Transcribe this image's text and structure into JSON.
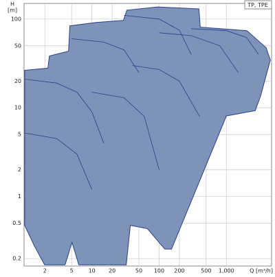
{
  "chart_data": {
    "type": "area",
    "title": "TP, TPE",
    "y_label": "H",
    "y_unit": "[m]",
    "x_label": "Q [m³/h]",
    "log_x": true,
    "log_y": true,
    "grid": true,
    "xlim": [
      0.98,
      4700
    ],
    "ylim": [
      0.165,
      150
    ],
    "xticks": [
      2,
      5,
      10,
      20,
      50,
      100,
      200,
      500,
      {
        "value": 1000,
        "label": "1,000"
      }
    ],
    "yticks": [
      0.2,
      0.5,
      1,
      2,
      5,
      10,
      20,
      50,
      100
    ],
    "series": [
      {
        "fill": "#7d93b7",
        "color": "#2b3e8c",
        "x": [
          1.0,
          2.22,
          2.33,
          4.5,
          4.7,
          11.5,
          29.4,
          33.1,
          95.5,
          391,
          409,
          2020,
          3910,
          4500,
          3240,
          2690,
          1000,
          153,
          121,
          67,
          37.3,
          32.4,
          6.4,
          5.06,
          4.0,
          1.98,
          1.39,
          1.0
        ],
        "values": [
          26.5,
          28,
          38.4,
          43.5,
          83.8,
          91.5,
          96.5,
          126,
          137,
          130,
          81,
          74,
          47.5,
          34.5,
          13.7,
          9.3,
          8.1,
          0.256,
          0.256,
          0.435,
          0.475,
          0.17,
          0.17,
          0.305,
          0.17,
          0.17,
          0.28,
          0.475
        ]
      },
      {
        "color": "#2b3e8c",
        "x": [
          1,
          3,
          6,
          10,
          15
        ],
        "values": [
          21,
          19,
          15,
          9,
          4
        ]
      },
      {
        "color": "#2b3e8c",
        "x": [
          5,
          15,
          30,
          50
        ],
        "values": [
          60,
          55,
          45,
          25
        ]
      },
      {
        "color": "#2b3e8c",
        "x": [
          30,
          100,
          200,
          300
        ],
        "values": [
          110,
          100,
          75,
          40
        ]
      },
      {
        "color": "#2b3e8c",
        "x": [
          1,
          3,
          6,
          10
        ],
        "values": [
          5.2,
          4.5,
          3,
          1.2
        ]
      },
      {
        "color": "#2b3e8c",
        "x": [
          100,
          300,
          800,
          1500
        ],
        "values": [
          70,
          65,
          50,
          25
        ]
      },
      {
        "color": "#2b3e8c",
        "x": [
          300,
          1000,
          2000,
          3000
        ],
        "values": [
          78,
          74,
          62,
          40
        ]
      },
      {
        "color": "#2b3e8c",
        "x": [
          10,
          30,
          60,
          100
        ],
        "values": [
          15,
          13,
          8,
          2
        ]
      },
      {
        "color": "#2b3e8c",
        "x": [
          40,
          100,
          200,
          400
        ],
        "values": [
          30,
          27,
          20,
          8
        ]
      }
    ]
  }
}
